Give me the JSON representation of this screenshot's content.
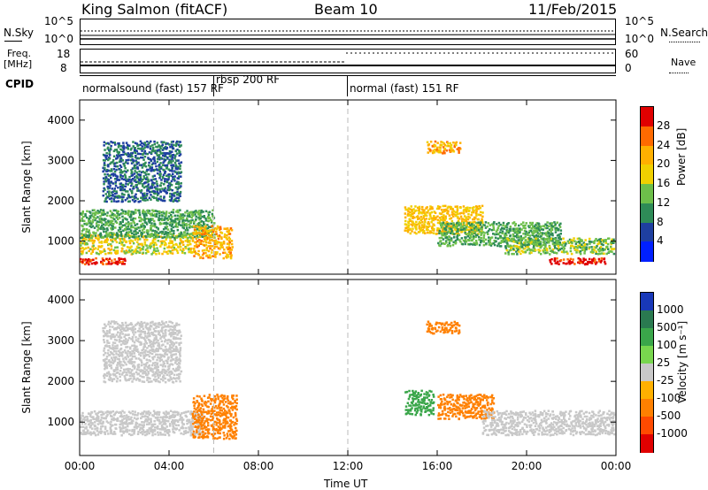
{
  "header": {
    "station": "King Salmon (fitACF)",
    "beam": "Beam 10",
    "date": "11/Feb/2015"
  },
  "top_panels": {
    "nsky_label": "N.Sky",
    "nsky_top_tick": "10^5",
    "nsky_bottom_tick": "10^0",
    "nsearch_label": "N.Search",
    "nsearch_top_tick": "10^5",
    "nsearch_bottom_tick": "10^0",
    "freq_label_1": "Freq.",
    "freq_label_2": "[MHz]",
    "freq_ticks": [
      "18",
      "8"
    ],
    "nave_label": "Nave",
    "nave_ticks": [
      "60",
      "0"
    ],
    "cpid_label": "CPID",
    "modes": [
      {
        "name": "normalsound (fast) 157 RF",
        "start": 0.0,
        "end": 6.0
      },
      {
        "name": "rbsp 200 RF",
        "start": 6.0,
        "end": 12.0
      },
      {
        "name": "normal (fast) 151 RF",
        "start": 12.0,
        "end": 24.0
      }
    ]
  },
  "colorbars": {
    "power_label": "Power [dB]",
    "power_ticks": [
      "28",
      "24",
      "20",
      "16",
      "12",
      "8",
      "4"
    ],
    "power_colors": [
      "#e00000",
      "#ff6a00",
      "#ffb000",
      "#f0d000",
      "#6dbf4a",
      "#2e8b57",
      "#1e3fa0",
      "#0020ff"
    ],
    "velocity_label": "Velocity [m s⁻¹]",
    "velocity_ticks": [
      "1000",
      "500",
      "100",
      "25",
      "-25",
      "-100",
      "-500",
      "-1000"
    ],
    "velocity_colors": [
      "#1838b8",
      "#2a7a50",
      "#3aa64a",
      "#78d64e",
      "#c8c8c8",
      "#ffb000",
      "#ff8000",
      "#ff4a00",
      "#e00000"
    ]
  },
  "chart_data": [
    {
      "type": "heatmap",
      "title": "Power",
      "xlabel": "Time UT",
      "ylabel": "Slant Range [km]",
      "xlim": [
        0,
        24
      ],
      "ylim": [
        180,
        4500
      ],
      "x_ticks": [
        "00:00",
        "04:00",
        "08:00",
        "12:00",
        "16:00",
        "20:00",
        "00:00"
      ],
      "y_ticks": [
        "1000",
        "2000",
        "3000",
        "4000"
      ],
      "colorbar": "Power [dB]",
      "bands": [
        {
          "t0": 0.0,
          "t1": 5.0,
          "r0": 700,
          "r1": 1200,
          "level": 16
        },
        {
          "t0": 0.0,
          "t1": 6.0,
          "r0": 1100,
          "r1": 1800,
          "level": 10
        },
        {
          "t0": 1.0,
          "t1": 4.5,
          "r0": 2000,
          "r1": 3500,
          "level": 6
        },
        {
          "t0": 5.0,
          "t1": 6.8,
          "r0": 600,
          "r1": 1400,
          "level": 20
        },
        {
          "t0": 0.0,
          "t1": 2.0,
          "r0": 450,
          "r1": 600,
          "level": 28
        },
        {
          "t0": 14.5,
          "t1": 18.0,
          "r0": 1200,
          "r1": 1900,
          "level": 18
        },
        {
          "t0": 16.0,
          "t1": 21.5,
          "r0": 900,
          "r1": 1500,
          "level": 10
        },
        {
          "t0": 19.0,
          "t1": 23.9,
          "r0": 700,
          "r1": 1100,
          "level": 12
        },
        {
          "t0": 21.0,
          "t1": 23.5,
          "r0": 450,
          "r1": 600,
          "level": 28
        },
        {
          "t0": 15.5,
          "t1": 17.0,
          "r0": 3200,
          "r1": 3500,
          "level": 20
        }
      ]
    },
    {
      "type": "heatmap",
      "title": "Velocity",
      "xlabel": "Time UT",
      "ylabel": "Slant Range [km]",
      "xlim": [
        0,
        24
      ],
      "ylim": [
        180,
        4500
      ],
      "x_ticks": [
        "00:00",
        "04:00",
        "08:00",
        "12:00",
        "16:00",
        "20:00",
        "00:00"
      ],
      "y_ticks": [
        "1000",
        "2000",
        "3000",
        "4000"
      ],
      "colorbar": "Velocity [m s⁻¹]",
      "bands": [
        {
          "t0": 0.0,
          "t1": 5.5,
          "r0": 700,
          "r1": 1300,
          "level": 0
        },
        {
          "t0": 1.0,
          "t1": 4.5,
          "r0": 2000,
          "r1": 3500,
          "level": 0
        },
        {
          "t0": 5.0,
          "t1": 7.0,
          "r0": 600,
          "r1": 1700,
          "level": -150
        },
        {
          "t0": 14.5,
          "t1": 15.8,
          "r0": 1200,
          "r1": 1800,
          "level": 300
        },
        {
          "t0": 16.0,
          "t1": 18.5,
          "r0": 1100,
          "r1": 1700,
          "level": -150
        },
        {
          "t0": 18.0,
          "t1": 23.9,
          "r0": 700,
          "r1": 1300,
          "level": 0
        },
        {
          "t0": 15.5,
          "t1": 17.0,
          "r0": 3200,
          "r1": 3500,
          "level": -300
        }
      ]
    }
  ]
}
